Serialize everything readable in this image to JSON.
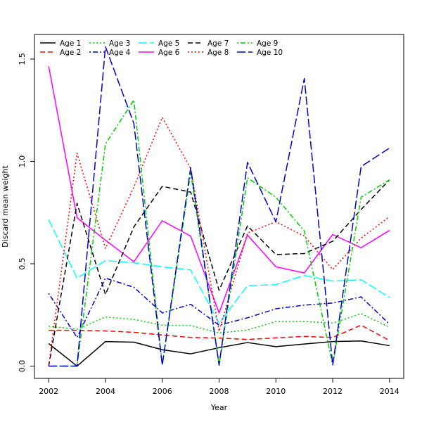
{
  "chart_data": {
    "type": "line",
    "title": "",
    "xlabel": "Year",
    "ylabel": "Discard mean weight",
    "x": [
      2002,
      2003,
      2004,
      2005,
      2006,
      2007,
      2008,
      2009,
      2010,
      2011,
      2012,
      2013,
      2014
    ],
    "xlim": [
      2001.5,
      2014.5
    ],
    "ylim": [
      -0.06,
      1.62
    ],
    "xticks": [
      "2002",
      "2004",
      "2006",
      "2008",
      "2010",
      "2012",
      "2014"
    ],
    "yticks": [
      "0.0",
      "0.5",
      "1.0",
      "1.5"
    ],
    "grid": false,
    "legend_position": "top-left",
    "series": [
      {
        "name": "Age 1",
        "color": "#000000",
        "dash": "solid",
        "values": [
          0.11,
          0.0,
          0.12,
          0.117,
          0.08,
          0.06,
          0.09,
          0.115,
          0.095,
          0.108,
          0.12,
          0.123,
          0.1
        ]
      },
      {
        "name": "Age 2",
        "color": "#ff0000",
        "dash": "dashed",
        "values": [
          0.175,
          0.175,
          0.172,
          0.165,
          0.152,
          0.14,
          0.137,
          0.13,
          0.138,
          0.145,
          0.14,
          0.2,
          0.125
        ]
      },
      {
        "name": "Age 3",
        "color": "#00cd00",
        "dash": "dotted",
        "values": [
          0.195,
          0.18,
          0.24,
          0.228,
          0.2,
          0.198,
          0.162,
          0.176,
          0.218,
          0.218,
          0.21,
          0.256,
          0.19
        ]
      },
      {
        "name": "Age 4",
        "color": "#0000cd",
        "dash": "dotdash",
        "values": [
          0.355,
          0.14,
          0.43,
          0.385,
          0.26,
          0.302,
          0.2,
          0.236,
          0.28,
          0.298,
          0.308,
          0.338,
          0.205
        ]
      },
      {
        "name": "Age 5",
        "color": "#00ffff",
        "dash": "longdash",
        "values": [
          0.715,
          0.43,
          0.515,
          0.505,
          0.485,
          0.47,
          0.21,
          0.393,
          0.398,
          0.443,
          0.415,
          0.422,
          0.335
        ]
      },
      {
        "name": "Age 6",
        "color": "#ff00ff",
        "dash": "solid",
        "values": [
          1.465,
          0.725,
          0.615,
          0.51,
          0.71,
          0.635,
          0.26,
          0.64,
          0.485,
          0.455,
          0.643,
          0.578,
          0.663
        ]
      },
      {
        "name": "Age 7",
        "color": "#000000",
        "dash": "dashed",
        "values": [
          0.0,
          0.795,
          0.35,
          0.68,
          0.878,
          0.85,
          0.37,
          0.685,
          0.545,
          0.55,
          0.61,
          0.765,
          0.91
        ]
      },
      {
        "name": "Age 8",
        "color": "#ff0000",
        "dash": "dotted",
        "values": [
          0.0,
          1.04,
          0.575,
          0.875,
          1.215,
          0.965,
          0.17,
          0.65,
          0.705,
          0.635,
          0.472,
          0.625,
          0.73
        ]
      },
      {
        "name": "Age 9",
        "color": "#00cd00",
        "dash": "dotdash",
        "values": [
          0.0,
          0.0,
          1.085,
          1.3,
          0.005,
          0.945,
          0.005,
          0.92,
          0.825,
          0.66,
          0.005,
          0.825,
          0.91
        ]
      },
      {
        "name": "Age 10",
        "color": "#0000cd",
        "dash": "longdash",
        "values": [
          0.0,
          0.0,
          1.56,
          1.185,
          0.005,
          0.97,
          0.005,
          0.995,
          0.705,
          1.405,
          0.005,
          0.975,
          1.065
        ]
      }
    ]
  }
}
